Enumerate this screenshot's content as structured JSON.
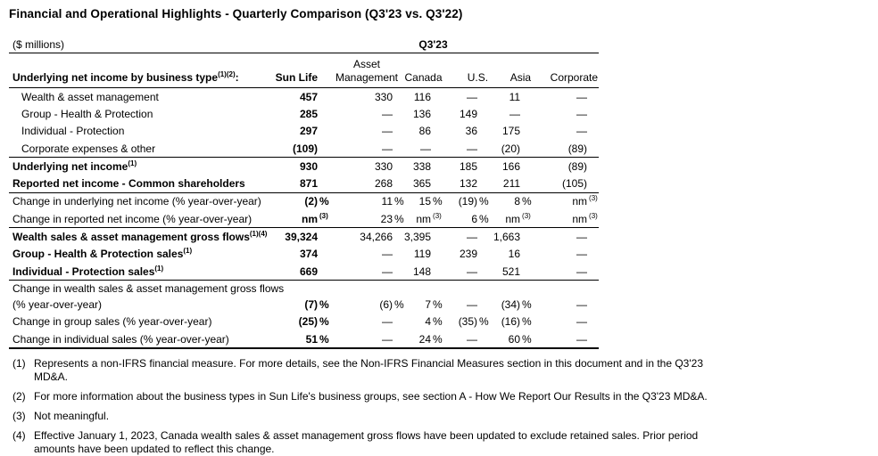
{
  "title": "Financial and Operational Highlights - Quarterly Comparison (Q3'23 vs. Q3'22)",
  "table": {
    "units_label": "($ millions)",
    "period_label": "Q3'23",
    "row_header": {
      "text": "Underlying net income by business type",
      "sup": "(1)(2)",
      "after": ":"
    },
    "columns": [
      {
        "lines": [
          "Sun Life"
        ]
      },
      {
        "lines": [
          "Asset",
          "Management"
        ]
      },
      {
        "lines": [
          "Canada"
        ]
      },
      {
        "lines": [
          "U.S."
        ]
      },
      {
        "lines": [
          "Asia"
        ]
      },
      {
        "lines": [
          "Corporate"
        ]
      }
    ],
    "rows": [
      {
        "label": "Wealth & asset management",
        "indent": true,
        "cells": [
          {
            "v": "457"
          },
          {
            "v": "330"
          },
          {
            "v": "116"
          },
          {
            "v": "—"
          },
          {
            "v": "11"
          },
          {
            "v": "—"
          }
        ]
      },
      {
        "label": "Group - Health & Protection",
        "indent": true,
        "cells": [
          {
            "v": "285"
          },
          {
            "v": "—"
          },
          {
            "v": "136"
          },
          {
            "v": "149"
          },
          {
            "v": "—"
          },
          {
            "v": "—"
          }
        ]
      },
      {
        "label": "Individual - Protection",
        "indent": true,
        "cells": [
          {
            "v": "297"
          },
          {
            "v": "—"
          },
          {
            "v": "86"
          },
          {
            "v": "36"
          },
          {
            "v": "175"
          },
          {
            "v": "—"
          }
        ]
      },
      {
        "label": "Corporate expenses & other",
        "indent": true,
        "rule": true,
        "cells": [
          {
            "v": "(109)"
          },
          {
            "v": "—"
          },
          {
            "v": "—"
          },
          {
            "v": "—"
          },
          {
            "v": "(20)"
          },
          {
            "v": "(89)"
          }
        ]
      },
      {
        "label": "Underlying net income",
        "sup": "(1)",
        "bold": true,
        "cells": [
          {
            "v": "930"
          },
          {
            "v": "330"
          },
          {
            "v": "338"
          },
          {
            "v": "185"
          },
          {
            "v": "166"
          },
          {
            "v": "(89)"
          }
        ]
      },
      {
        "label": "Reported net income - Common shareholders",
        "bold": true,
        "rule": true,
        "cells": [
          {
            "v": "871"
          },
          {
            "v": "268"
          },
          {
            "v": "365"
          },
          {
            "v": "132"
          },
          {
            "v": "211"
          },
          {
            "v": "(105)"
          }
        ]
      },
      {
        "label": "Change in underlying net income (% year-over-year)",
        "cells": [
          {
            "v": "(2)",
            "s": "%"
          },
          {
            "v": "11",
            "s": "%"
          },
          {
            "v": "15",
            "s": "%"
          },
          {
            "v": "(19)",
            "s": "%"
          },
          {
            "v": "8",
            "s": "%"
          },
          {
            "v": "nm",
            "sup": "(3)"
          }
        ]
      },
      {
        "label": "Change in reported net income (% year-over-year)",
        "rule": true,
        "cells": [
          {
            "v": "nm",
            "sup": "(3)"
          },
          {
            "v": "23",
            "s": "%"
          },
          {
            "v": "nm",
            "sup": "(3)"
          },
          {
            "v": "6",
            "s": "%"
          },
          {
            "v": "nm",
            "sup": "(3)"
          },
          {
            "v": "nm",
            "sup": "(3)"
          }
        ]
      },
      {
        "label": "Wealth sales & asset management gross flows",
        "sup": "(1)(4)",
        "bold": true,
        "cells": [
          {
            "v": "39,324"
          },
          {
            "v": "34,266"
          },
          {
            "v": "3,395"
          },
          {
            "v": "—"
          },
          {
            "v": "1,663"
          },
          {
            "v": "—"
          }
        ]
      },
      {
        "label": "Group - Health & Protection sales",
        "sup": "(1)",
        "bold": true,
        "cells": [
          {
            "v": "374"
          },
          {
            "v": "—"
          },
          {
            "v": "119"
          },
          {
            "v": "239"
          },
          {
            "v": "16"
          },
          {
            "v": "—"
          }
        ]
      },
      {
        "label": "Individual - Protection sales",
        "sup": "(1)",
        "bold": true,
        "rule": true,
        "cells": [
          {
            "v": "669"
          },
          {
            "v": "—"
          },
          {
            "v": "148"
          },
          {
            "v": "—"
          },
          {
            "v": "521"
          },
          {
            "v": "—"
          }
        ]
      },
      {
        "label_lines": [
          "Change in wealth sales & asset management gross flows",
          "(% year-over-year)"
        ],
        "cells": [
          {
            "v": "(7)",
            "s": "%"
          },
          {
            "v": "(6)",
            "s": "%"
          },
          {
            "v": "7",
            "s": "%"
          },
          {
            "v": "—"
          },
          {
            "v": "(34)",
            "s": "%"
          },
          {
            "v": "—"
          }
        ]
      },
      {
        "label": "Change in group sales (% year-over-year)",
        "cells": [
          {
            "v": "(25)",
            "s": "%"
          },
          {
            "v": "—"
          },
          {
            "v": "4",
            "s": "%"
          },
          {
            "v": "(35)",
            "s": "%"
          },
          {
            "v": "(16)",
            "s": "%"
          },
          {
            "v": "—"
          }
        ]
      },
      {
        "label": "Change in individual sales (% year-over-year)",
        "rule": "thick",
        "cells": [
          {
            "v": "51",
            "s": "%"
          },
          {
            "v": "—"
          },
          {
            "v": "24",
            "s": "%"
          },
          {
            "v": "—"
          },
          {
            "v": "60",
            "s": "%"
          },
          {
            "v": "—"
          }
        ]
      }
    ]
  },
  "footnotes": [
    {
      "num": "(1)",
      "lines": [
        "Represents a non-IFRS financial measure. For more details, see the Non-IFRS Financial Measures section in this document and in the Q3'23",
        "MD&A."
      ]
    },
    {
      "num": "(2)",
      "lines": [
        "For more information about the business types in Sun Life's business groups, see section A - How We Report Our Results in the Q3'23 MD&A."
      ]
    },
    {
      "num": "(3)",
      "lines": [
        "Not meaningful."
      ]
    },
    {
      "num": "(4)",
      "lines": [
        "Effective January 1, 2023, Canada wealth sales & asset management gross flows have been updated to exclude retained sales. Prior period",
        "amounts have been updated to reflect this change."
      ]
    }
  ]
}
